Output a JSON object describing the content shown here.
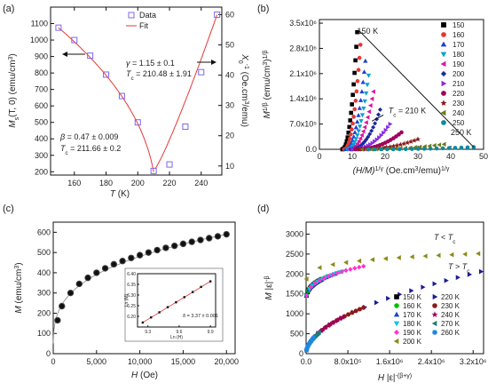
{
  "panels": [
    {
      "label": "(a)"
    },
    {
      "label": "(b)"
    },
    {
      "label": "(c)"
    },
    {
      "label": "(d)"
    }
  ],
  "chart_data": [
    {
      "id": "a",
      "type": "scatter",
      "xlabel": "T (K)",
      "ylabel_left": "M_s(T, 0) (emu/cm³)",
      "ylabel_right": "χ₀⁻¹ (Oe.cm³/emu)",
      "xlim": [
        145,
        253
      ],
      "ylim_left": [
        180,
        1200
      ],
      "ylim_right": [
        7,
        62.5
      ],
      "xticks": [
        160,
        180,
        200,
        220,
        240
      ],
      "yticks_left": [
        200,
        300,
        400,
        500,
        600,
        700,
        800,
        900,
        1000,
        1100
      ],
      "yticks_right": [
        10,
        20,
        30,
        40,
        50,
        60
      ],
      "legend": [
        "Data",
        "Fit"
      ],
      "colors": {
        "data": "#7b68ee",
        "fit": "#e53935",
        "annot": "#1a3fc4"
      },
      "series": [
        {
          "name": "Data",
          "axis": "left",
          "x": [
            150,
            160,
            170,
            180,
            190,
            200,
            210
          ],
          "y": [
            1075,
            1000,
            905,
            790,
            660,
            500,
            205
          ]
        },
        {
          "name": "Data",
          "axis": "right",
          "x": [
            220,
            230,
            240,
            250
          ],
          "y": [
            10.5,
            23,
            41,
            60
          ]
        }
      ],
      "annotations": [
        {
          "text": "γ = 1.15 ± 0.1"
        },
        {
          "text": "T_c = 210.48 ± 1.91"
        },
        {
          "text": "β = 0.47 ± 0.009"
        },
        {
          "text": "T_c = 211.66 ± 0.2"
        }
      ]
    },
    {
      "id": "b",
      "type": "line",
      "xlabel": "(H/M)^{1/γ} (Oe.cm³/emu)^{1/γ}",
      "ylabel": "M^{1/β} (emu/cm³)^{1/β}",
      "xlim": [
        0,
        50
      ],
      "ylim": [
        0,
        3600000.0
      ],
      "xticks": [
        0,
        10,
        20,
        30,
        40,
        50
      ],
      "yticks": [
        0,
        700000,
        1400000,
        2100000,
        2800000,
        3500000
      ],
      "ytick_labels": [
        "0.0",
        "7.0x10⁵",
        "1.4x10⁶",
        "2.1x10⁶",
        "2.8x10⁶",
        "3.5x10⁶"
      ],
      "annotations": [
        {
          "text": "150 K"
        },
        {
          "text": "T_c = 210 K"
        },
        {
          "text": "250 K"
        }
      ],
      "series": [
        {
          "name": "150",
          "color": "#000000",
          "x_start": 7.0,
          "x_end": 11.5,
          "y_end": 3250000
        },
        {
          "name": "160",
          "color": "#e53935",
          "x_start": 7.5,
          "x_end": 12.5,
          "y_end": 2900000
        },
        {
          "name": "170",
          "color": "#1e40d8",
          "x_start": 8.0,
          "x_end": 14.0,
          "y_end": 2450000
        },
        {
          "name": "180",
          "color": "#00a0d0",
          "x_start": 8.5,
          "x_end": 15.0,
          "y_end": 2050000
        },
        {
          "name": "190",
          "color": "#d81b9c",
          "x_start": 9.0,
          "x_end": 16.5,
          "y_end": 1600000
        },
        {
          "name": "200",
          "color": "#1a2a9c",
          "x_start": 9.5,
          "x_end": 18.5,
          "y_end": 1100000
        },
        {
          "name": "210",
          "color": "#8a2be2",
          "x_start": 10.0,
          "x_end": 21.5,
          "y_end": 700000
        },
        {
          "name": "220",
          "color": "#a0005a",
          "x_start": 11.0,
          "x_end": 25.0,
          "y_end": 470000
        },
        {
          "name": "230",
          "color": "#8b1a1a",
          "x_start": 12.0,
          "x_end": 30.0,
          "y_end": 280000
        },
        {
          "name": "240",
          "color": "#6b7a1a",
          "x_start": 13.0,
          "x_end": 38.0,
          "y_end": 140000
        },
        {
          "name": "250",
          "color": "#0a8aa0",
          "x_start": 15.0,
          "x_end": 47.0,
          "y_end": 60000
        }
      ]
    },
    {
      "id": "c",
      "type": "scatter",
      "xlabel": "H (Oe)",
      "ylabel": "M (emu/cm³)",
      "xlim": [
        0,
        21000
      ],
      "ylim": [
        0,
        650
      ],
      "xticks": [
        0,
        5000,
        10000,
        15000,
        20000
      ],
      "xtick_labels": [
        "0",
        "5,000",
        "10,000",
        "15,000",
        "20,000"
      ],
      "yticks": [
        0,
        100,
        200,
        300,
        400,
        500,
        600
      ],
      "series": [
        {
          "name": "M",
          "x": [
            500,
            1000,
            2000,
            3000,
            4000,
            5000,
            6000,
            7000,
            8000,
            9000,
            10000,
            11000,
            12000,
            13000,
            14000,
            15000,
            16000,
            17000,
            18000,
            19000,
            20000
          ],
          "y": [
            165,
            235,
            300,
            345,
            375,
            400,
            422,
            442,
            458,
            473,
            487,
            500,
            512,
            523,
            533,
            543,
            553,
            562,
            571,
            580,
            590
          ]
        }
      ],
      "inset": {
        "type": "scatter",
        "xlabel": "Ln (H)",
        "ylabel": "Ln (M)",
        "xlim": [
          9.2,
          9.95
        ],
        "ylim": [
          6.15,
          6.4
        ],
        "xticks": [
          9.3,
          9.6,
          9.9
        ],
        "yticks": [
          6.2,
          6.25,
          6.3,
          6.35,
          6.4
        ],
        "x": [
          9.25,
          9.33,
          9.41,
          9.49,
          9.57,
          9.65,
          9.73,
          9.81,
          9.9
        ],
        "y": [
          6.171,
          6.195,
          6.219,
          6.243,
          6.266,
          6.29,
          6.314,
          6.338,
          6.364
        ],
        "annotation": "δ = 3.37 ± 0.001"
      }
    },
    {
      "id": "d",
      "type": "scatter",
      "xlabel": "H |ε|^{-(β+γ)}",
      "ylabel": "M |ε|^{-β}",
      "xlim": [
        0,
        3400000
      ],
      "ylim": [
        0,
        3300
      ],
      "xticks": [
        0,
        800000,
        1600000,
        2400000,
        3200000
      ],
      "xtick_labels": [
        "0.0",
        "8.0x10⁵",
        "1.6x10⁶",
        "2.4x10⁶",
        "3.2x10⁶"
      ],
      "yticks": [
        0,
        500,
        1000,
        1500,
        2000,
        2500,
        3000
      ],
      "annotations": [
        {
          "text": "T < T_c"
        },
        {
          "text": "T > T_c"
        }
      ],
      "series": [
        {
          "name": "150 K",
          "color": "#000000",
          "branch": "below",
          "x_end": 300000
        },
        {
          "name": "160 K",
          "color": "#00c000",
          "branch": "below",
          "x_end": 400000
        },
        {
          "name": "170 K",
          "color": "#1e40d8",
          "branch": "below",
          "x_end": 550000
        },
        {
          "name": "180 K",
          "color": "#00c8e0",
          "branch": "below",
          "x_end": 700000
        },
        {
          "name": "190 K",
          "color": "#ff33cc",
          "branch": "below",
          "x_end": 1100000
        },
        {
          "name": "200 K",
          "color": "#8a8a1a",
          "branch": "below",
          "x_end": 3300000
        },
        {
          "name": "220 K",
          "color": "#1a1a9c",
          "branch": "above",
          "x_end": 3350000
        },
        {
          "name": "230 K",
          "color": "#8b1a1a",
          "branch": "above",
          "x_end": 1100000
        },
        {
          "name": "240 K",
          "color": "#a0005a",
          "branch": "above",
          "x_end": 700000
        },
        {
          "name": "270 K",
          "color": "#1a7f7f",
          "branch": "above",
          "x_end": 250000
        },
        {
          "name": "260 K",
          "color": "#1a8ae0",
          "branch": "above",
          "x_end": 150000
        }
      ]
    }
  ]
}
